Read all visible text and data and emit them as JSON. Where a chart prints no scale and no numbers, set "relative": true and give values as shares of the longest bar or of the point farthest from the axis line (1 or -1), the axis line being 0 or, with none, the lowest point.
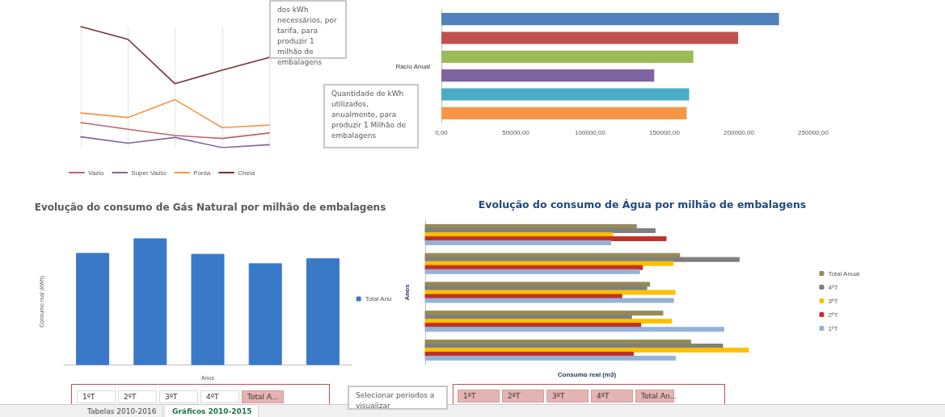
{
  "chart_data": [
    {
      "type": "line",
      "relative": true,
      "categories": [
        null,
        null,
        null,
        null,
        null
      ],
      "grid": "x",
      "legend": "bottom",
      "marker": "none",
      "line_style": "solid",
      "series": [
        {
          "name": "Vazio",
          "color": "#c0626a",
          "values": [
            0.207,
            0.152,
            0.1,
            0.076,
            0.121
          ]
        },
        {
          "name": "Super Vazio",
          "color": "#8064a2",
          "values": [
            0.089,
            0.037,
            0.084,
            0,
            0.024
          ]
        },
        {
          "name": "Ponta",
          "color": "#f79646",
          "values": [
            0.286,
            0.249,
            0.396,
            0.165,
            0.186
          ]
        },
        {
          "name": "Cheia",
          "color": "#7b2c38",
          "values": [
            1,
            0.895,
            0.528,
            0.64,
            0.745
          ]
        }
      ],
      "annotations": [
        "dos kWh necessários, por tarifa, para produzir 1 milhão de embalagens"
      ]
    },
    {
      "type": "bar",
      "orientation": "horizontal",
      "ylabel": "Racio Anual",
      "categories": [
        null,
        null,
        null,
        null,
        null,
        null
      ],
      "xlim": [
        0,
        250000
      ],
      "xticks": [
        {
          "value": 0,
          "label": "0,00"
        },
        {
          "value": 50000,
          "label": "50000,00"
        },
        {
          "value": 100000,
          "label": "100000,00"
        },
        {
          "value": 150000,
          "label": "150000,00"
        },
        {
          "value": 200000,
          "label": "200000,00"
        },
        {
          "value": 250000,
          "label": "250000,00"
        }
      ],
      "values": [
        227000,
        199500,
        169400,
        143100,
        166600,
        164900
      ],
      "colors": [
        "#4f81bd",
        "#c0504d",
        "#9bbb59",
        "#8064a2",
        "#4bacc6",
        "#f79646"
      ],
      "annotations": [
        "Quantidade de kWh utilizados, anualmente, para produzir 1 Milhão de embalagens"
      ]
    },
    {
      "type": "bar",
      "relative": true,
      "title": "Evolução do consumo de Gás Natural por milhão de embalagens",
      "xlabel": "Anos",
      "ylabel": "Consumo real (kWh)",
      "categories": [
        null,
        null,
        null,
        null,
        null
      ],
      "legend": "right",
      "series": [
        {
          "name": "Total Anu",
          "color": "#3a78c8",
          "values": [
            0.884,
            1,
            0.877,
            0.802,
            0.841
          ]
        }
      ],
      "annotations": [
        "1ºT",
        "2ºT",
        "3ºT",
        "4ºT",
        "Total A..."
      ]
    },
    {
      "type": "bar",
      "relative": true,
      "orientation": "horizontal",
      "title": "Evolução do consumo de Água por milhão de embalagens",
      "xlabel": "Consumo real (m3)",
      "ylabel": "Anos",
      "categories": [
        null,
        null,
        null,
        null,
        null
      ],
      "legend": "right",
      "series": [
        {
          "name": "Total Anual",
          "color": "#948a54",
          "values": [
            0.653,
            0.787,
            0.694,
            0.735,
            0.821
          ]
        },
        {
          "name": "4ºT",
          "color": "#7f7f7f",
          "values": [
            0.711,
            0.971,
            0.685,
            0.638,
            0.92
          ]
        },
        {
          "name": "3ºT",
          "color": "#ffc000",
          "values": [
            0.58,
            0.767,
            0.773,
            0.762,
            1
          ]
        },
        {
          "name": "2ºT",
          "color": "#c0302a",
          "values": [
            0.745,
            0.672,
            0.608,
            0.667,
            0.644
          ]
        },
        {
          "name": "1ºT",
          "color": "#95b3d7",
          "values": [
            0.574,
            0.663,
            0.768,
            0.924,
            0.774
          ]
        }
      ],
      "annotations": [
        "Selecionar periodos a visualizar",
        "1ºT",
        "2ºT",
        "3ºT",
        "4ºT",
        "Total An..."
      ]
    },
    {
      "type": "other",
      "annotations": [
        "Tabelas 2010-2016",
        "Gráficos 2010-2015"
      ]
    }
  ]
}
